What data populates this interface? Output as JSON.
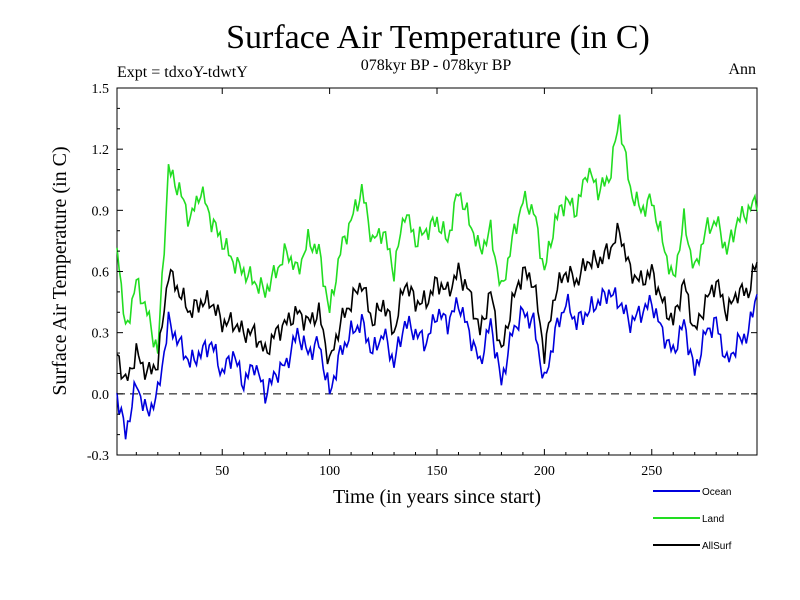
{
  "chart_data": {
    "type": "line",
    "title": "Surface Air Temperature (in C)",
    "subtitle_left": "Expt = tdxoY-tdwtY",
    "subtitle_center": "078kyr BP - 078kyr BP",
    "subtitle_right": "Ann",
    "xlabel": "Time (in years since start)",
    "ylabel": "Surface Air Temperature (in C)",
    "xlim": [
      1,
      299
    ],
    "ylim": [
      -0.3,
      1.5
    ],
    "xticks": [
      50,
      100,
      150,
      200,
      250
    ],
    "xtick_labels": [
      "50",
      "100",
      "150",
      "200",
      "250"
    ],
    "yticks": [
      -0.3,
      0.0,
      0.3,
      0.6,
      0.9,
      1.2,
      1.5
    ],
    "ytick_labels": [
      "-0.3",
      "0.0",
      "0.3",
      "0.6",
      "0.9",
      "1.2",
      "1.5"
    ],
    "reference_line": {
      "y": 0.0,
      "style": "dashed"
    },
    "legend_position": "bottom-right",
    "x": [
      1,
      5,
      10,
      15,
      20,
      25,
      30,
      35,
      40,
      45,
      50,
      55,
      60,
      65,
      70,
      75,
      80,
      85,
      90,
      95,
      100,
      105,
      110,
      115,
      120,
      125,
      130,
      135,
      140,
      145,
      150,
      155,
      160,
      165,
      170,
      175,
      180,
      185,
      190,
      195,
      200,
      205,
      210,
      215,
      220,
      225,
      230,
      235,
      240,
      245,
      250,
      255,
      260,
      265,
      270,
      275,
      280,
      285,
      290,
      295,
      299
    ],
    "series": [
      {
        "name": "Ocean",
        "color": "#0000dd",
        "values": [
          0.0,
          -0.2,
          0.05,
          -0.1,
          0.0,
          0.35,
          0.25,
          0.15,
          0.2,
          0.25,
          0.1,
          0.2,
          0.05,
          0.15,
          0.0,
          0.1,
          0.15,
          0.3,
          0.2,
          0.25,
          0.0,
          0.2,
          0.3,
          0.35,
          0.2,
          0.3,
          0.15,
          0.35,
          0.3,
          0.25,
          0.4,
          0.35,
          0.45,
          0.3,
          0.15,
          0.35,
          0.05,
          0.3,
          0.4,
          0.35,
          0.05,
          0.3,
          0.45,
          0.35,
          0.4,
          0.45,
          0.5,
          0.45,
          0.35,
          0.4,
          0.45,
          0.3,
          0.2,
          0.35,
          0.1,
          0.3,
          0.35,
          0.15,
          0.25,
          0.3,
          0.5
        ]
      },
      {
        "name": "Land",
        "color": "#22dd22",
        "values": [
          0.75,
          0.3,
          0.55,
          0.4,
          0.2,
          1.1,
          1.0,
          0.85,
          1.0,
          0.85,
          0.75,
          0.65,
          0.6,
          0.55,
          0.5,
          0.6,
          0.7,
          0.6,
          0.75,
          0.7,
          0.4,
          0.7,
          0.85,
          1.0,
          0.75,
          0.8,
          0.6,
          0.9,
          0.75,
          0.8,
          0.85,
          0.75,
          1.0,
          0.85,
          0.7,
          0.8,
          0.5,
          0.75,
          0.95,
          0.9,
          0.6,
          0.85,
          0.95,
          0.9,
          1.1,
          1.0,
          1.05,
          1.35,
          1.0,
          0.9,
          0.95,
          0.75,
          0.55,
          0.85,
          0.6,
          0.8,
          0.85,
          0.7,
          0.85,
          0.9,
          0.95
        ]
      },
      {
        "name": "AllSurf",
        "color": "#000000",
        "values": [
          0.2,
          0.05,
          0.2,
          0.1,
          0.15,
          0.6,
          0.5,
          0.4,
          0.45,
          0.45,
          0.35,
          0.35,
          0.3,
          0.3,
          0.2,
          0.3,
          0.35,
          0.4,
          0.35,
          0.4,
          0.15,
          0.35,
          0.45,
          0.55,
          0.35,
          0.45,
          0.3,
          0.55,
          0.45,
          0.45,
          0.55,
          0.5,
          0.6,
          0.5,
          0.3,
          0.5,
          0.2,
          0.45,
          0.6,
          0.55,
          0.2,
          0.5,
          0.6,
          0.55,
          0.65,
          0.65,
          0.7,
          0.8,
          0.6,
          0.55,
          0.6,
          0.45,
          0.35,
          0.55,
          0.3,
          0.45,
          0.55,
          0.4,
          0.5,
          0.5,
          0.65
        ]
      }
    ]
  }
}
